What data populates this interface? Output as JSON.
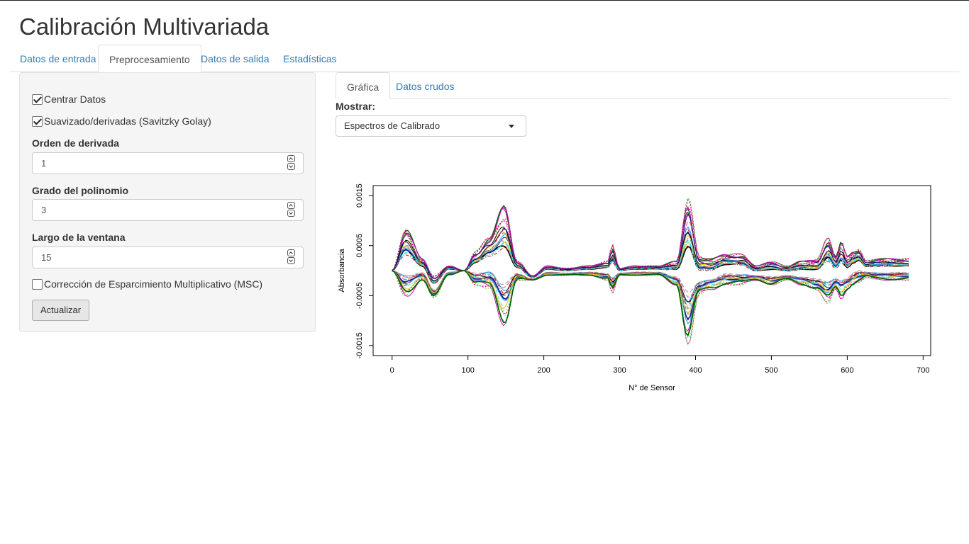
{
  "app": {
    "title": "Calibración Multivariada"
  },
  "main_tabs": [
    "Datos de entrada",
    "Preprocesamiento",
    "Datos de salida",
    "Estadísticas"
  ],
  "sidebar": {
    "center_label": "Centrar Datos",
    "smooth_label": "Suavizado/derivadas (Savitzky Golay)",
    "deriv_label": "Orden de derivada",
    "deriv_value": "1",
    "poly_label": "Grado del polinomio",
    "poly_value": "3",
    "window_label": "Largo de la ventana",
    "window_value": "15",
    "msc_label": "Corrección de Esparcimiento Multiplicativo (MSC)",
    "update_button": "Actualizar"
  },
  "result_tabs": [
    "Gráfica",
    "Datos crudos"
  ],
  "display": {
    "label": "Mostrar:",
    "selected": "Espectros de Calibrado"
  },
  "chart_data": {
    "type": "line",
    "xlabel": "N° de Sensor",
    "ylabel": "Absorbancia",
    "xlim": [
      -25,
      710
    ],
    "ylim": [
      -0.0017,
      0.0017
    ],
    "x_ticks": [
      0,
      100,
      200,
      300,
      400,
      500,
      600,
      700
    ],
    "y_ticks": [
      -0.0015,
      -0.0005,
      0.0005,
      0.0015
    ],
    "y_tick_labels": [
      "-0.0015",
      "-0.0005",
      "0.0005",
      "0.0015"
    ],
    "envelope_upper": {
      "x": [
        0,
        18,
        40,
        55,
        75,
        95,
        110,
        128,
        148,
        165,
        185,
        205,
        230,
        260,
        285,
        290,
        300,
        320,
        350,
        375,
        390,
        405,
        420,
        440,
        460,
        480,
        500,
        520,
        540,
        560,
        575,
        585,
        592,
        600,
        608,
        615,
        625,
        640,
        660,
        680
      ],
      "y": [
        0,
        0.00087,
        0.00025,
        -0.0001,
        0.0001,
        0,
        0.0004,
        0.0007,
        0.00135,
        0.0002,
        -0.0001,
        0.0001,
        5e-05,
        0.0001,
        0.0002,
        0.00055,
        5e-05,
        0.0001,
        0.0001,
        0.0002,
        0.00155,
        0.0003,
        0.00025,
        0.00035,
        0.00035,
        0.0001,
        0.0002,
        0.0001,
        0.0002,
        0.00025,
        0.0007,
        0.0003,
        0.0006,
        0.0003,
        0.0004,
        0.00045,
        0.0002,
        0.00025,
        0.00025,
        0.00025
      ]
    },
    "envelope_lower": {
      "x": [
        0,
        18,
        40,
        55,
        75,
        95,
        110,
        128,
        148,
        165,
        185,
        205,
        230,
        260,
        285,
        290,
        300,
        320,
        350,
        375,
        390,
        405,
        420,
        440,
        460,
        480,
        500,
        520,
        540,
        560,
        575,
        585,
        592,
        600,
        608,
        615,
        625,
        640,
        660,
        680
      ],
      "y": [
        0,
        -0.0006,
        -0.0002,
        -0.00055,
        -0.0001,
        0,
        -0.0003,
        -0.0004,
        -0.00115,
        -0.0002,
        -0.0002,
        -0.0001,
        -0.0001,
        -0.0001,
        -0.0002,
        -0.0005,
        -0.0001,
        -0.0001,
        -0.0001,
        -0.0003,
        -0.00155,
        -0.0005,
        -0.0004,
        -0.0003,
        -0.0003,
        -0.0002,
        -0.0003,
        -0.0002,
        -0.0003,
        -0.0004,
        -0.0007,
        -0.0004,
        -0.0006,
        -0.0004,
        -0.0003,
        -0.00025,
        -0.00015,
        -0.0002,
        -0.0002,
        -0.0002
      ]
    },
    "series_colors": [
      "#000000",
      "#df536b",
      "#61d04f",
      "#2297e6",
      "#28e2e5",
      "#cd0bbc",
      "#f5c710",
      "#9e9e9e",
      "#e6007a",
      "#1e1e8c",
      "#b22222",
      "#006400"
    ]
  }
}
